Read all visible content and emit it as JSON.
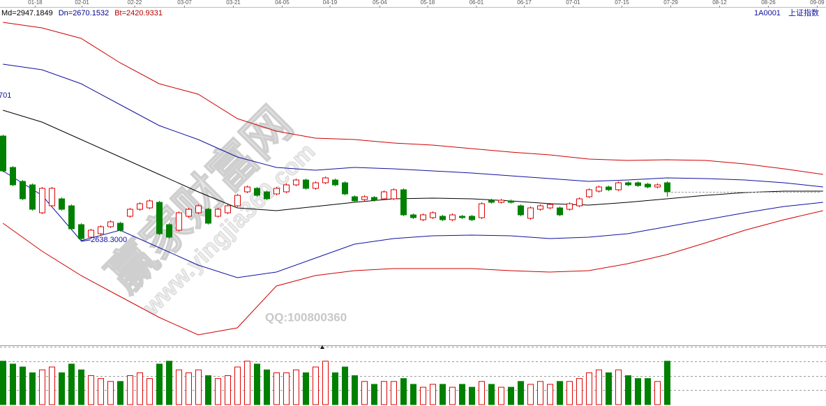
{
  "chart_data": {
    "type": "candlestick",
    "code": "1A0001",
    "title": "上证指数",
    "indicators": [
      {
        "label": "Md=2947.1849",
        "color": "#000000"
      },
      {
        "label": "Dn=2670.1532",
        "color": "#00008b"
      },
      {
        "label": "Bt=2420.9331",
        "color": "#b00000"
      }
    ],
    "low_label": "2638.3000",
    "left_label": "701",
    "watermarks": [
      "赢家财富网",
      "www.yingjia360.com",
      "QQ:100800360"
    ],
    "xlim": [
      -0.3,
      84.3
    ],
    "ylim": [
      2340,
      3310
    ],
    "xticks": [
      {
        "value": 3.3,
        "label": "01-18"
      },
      {
        "value": 8.1,
        "label": "02-01"
      },
      {
        "value": 13.5,
        "label": "02-22"
      },
      {
        "value": 18.6,
        "label": "03-07"
      },
      {
        "value": 23.6,
        "label": "03-21"
      },
      {
        "value": 28.6,
        "label": "04-05"
      },
      {
        "value": 33.5,
        "label": "04-19"
      },
      {
        "value": 38.6,
        "label": "05-04"
      },
      {
        "value": 43.5,
        "label": "05-18"
      },
      {
        "value": 48.5,
        "label": "06-01"
      },
      {
        "value": 53.4,
        "label": "06-17"
      },
      {
        "value": 58.4,
        "label": "07-01"
      },
      {
        "value": 63.4,
        "label": "07-15"
      },
      {
        "value": 68.4,
        "label": "07-29"
      },
      {
        "value": 73.4,
        "label": "08-12"
      },
      {
        "value": 78.4,
        "label": "08-26"
      },
      {
        "value": 83.4,
        "label": "09-09"
      }
    ],
    "up_color": "#e00000",
    "down_color": "#008000",
    "candles": {
      "open": [
        2940,
        2850,
        2810,
        2800,
        2720,
        2740,
        2760,
        2740,
        2686,
        2650,
        2660,
        2680,
        2690,
        2710,
        2730,
        2734,
        2750,
        2686,
        2670,
        2710,
        2720,
        2730,
        2710,
        2720,
        2740,
        2780,
        2790,
        2780,
        2774,
        2780,
        2800,
        2814,
        2790,
        2806,
        2814,
        2806,
        2766,
        2758,
        2764,
        2760,
        2760,
        2786,
        2714,
        2700,
        2706,
        2710,
        2700,
        2710,
        2710,
        2706,
        2756,
        2750,
        2754,
        2740,
        2704,
        2730,
        2734,
        2734,
        2730,
        2740,
        2766,
        2782,
        2794,
        2786,
        2806,
        2806,
        2802,
        2794,
        2806
      ],
      "close": [
        2840,
        2800,
        2760,
        2730,
        2790,
        2790,
        2730,
        2674,
        2646,
        2670,
        2680,
        2694,
        2670,
        2730,
        2746,
        2754,
        2660,
        2650,
        2720,
        2730,
        2740,
        2690,
        2730,
        2740,
        2770,
        2794,
        2770,
        2760,
        2790,
        2800,
        2814,
        2790,
        2806,
        2820,
        2800,
        2774,
        2754,
        2766,
        2756,
        2780,
        2786,
        2714,
        2706,
        2714,
        2720,
        2700,
        2714,
        2706,
        2700,
        2746,
        2750,
        2756,
        2750,
        2714,
        2734,
        2740,
        2744,
        2714,
        2746,
        2760,
        2786,
        2794,
        2786,
        2806,
        2800,
        2798,
        2794,
        2800,
        2780
      ],
      "high": [
        2944,
        2854,
        2814,
        2804,
        2794,
        2794,
        2764,
        2744,
        2690,
        2674,
        2684,
        2698,
        2694,
        2734,
        2750,
        2758,
        2754,
        2690,
        2724,
        2734,
        2744,
        2734,
        2734,
        2744,
        2774,
        2798,
        2794,
        2784,
        2794,
        2804,
        2818,
        2818,
        2810,
        2824,
        2818,
        2810,
        2770,
        2770,
        2768,
        2784,
        2790,
        2790,
        2718,
        2718,
        2724,
        2714,
        2718,
        2714,
        2714,
        2750,
        2760,
        2760,
        2758,
        2744,
        2738,
        2744,
        2748,
        2738,
        2750,
        2764,
        2790,
        2798,
        2798,
        2810,
        2810,
        2810,
        2806,
        2804,
        2810
      ],
      "low": [
        2836,
        2796,
        2756,
        2726,
        2716,
        2736,
        2726,
        2670,
        2638.3,
        2646,
        2656,
        2676,
        2666,
        2706,
        2726,
        2730,
        2656,
        2646,
        2666,
        2706,
        2716,
        2686,
        2706,
        2716,
        2736,
        2776,
        2766,
        2756,
        2770,
        2776,
        2796,
        2786,
        2786,
        2802,
        2796,
        2770,
        2750,
        2754,
        2752,
        2756,
        2756,
        2710,
        2702,
        2696,
        2702,
        2696,
        2696,
        2702,
        2696,
        2702,
        2746,
        2746,
        2746,
        2710,
        2700,
        2726,
        2730,
        2710,
        2726,
        2736,
        2762,
        2778,
        2782,
        2782,
        2796,
        2794,
        2790,
        2790,
        2766
      ]
    },
    "band_x": [
      0,
      4,
      8,
      12,
      16,
      20,
      24,
      28,
      32,
      36,
      40,
      44,
      48,
      52,
      56,
      60,
      64,
      68,
      72,
      76,
      80,
      84
    ],
    "bands": [
      {
        "color": "#d00000",
        "values": [
          3266,
          3250,
          3220,
          3150,
          3090,
          3060,
          2990,
          2954,
          2934,
          2930,
          2920,
          2914,
          2904,
          2894,
          2886,
          2874,
          2870,
          2872,
          2870,
          2860,
          2846,
          2830
        ]
      },
      {
        "color": "#1010a0",
        "values": [
          3146,
          3130,
          3090,
          3030,
          2970,
          2930,
          2880,
          2850,
          2842,
          2850,
          2846,
          2840,
          2834,
          2826,
          2818,
          2810,
          2814,
          2820,
          2818,
          2814,
          2806,
          2794
        ]
      },
      {
        "color": "#000000",
        "values": [
          3014,
          2980,
          2930,
          2880,
          2830,
          2780,
          2734,
          2726,
          2738,
          2750,
          2760,
          2762,
          2760,
          2754,
          2746,
          2742,
          2750,
          2760,
          2770,
          2778,
          2782,
          2782
        ]
      },
      {
        "color": "#1010a0",
        "values": [
          2840,
          2770,
          2640,
          2670,
          2620,
          2570,
          2534,
          2550,
          2590,
          2630,
          2646,
          2654,
          2656,
          2654,
          2646,
          2650,
          2660,
          2680,
          2700,
          2720,
          2738,
          2750
        ]
      },
      {
        "color": "#d00000",
        "values": [
          2690,
          2610,
          2540,
          2480,
          2420,
          2370,
          2390,
          2510,
          2540,
          2554,
          2560,
          2560,
          2560,
          2554,
          2550,
          2554,
          2574,
          2600,
          2634,
          2670,
          2700,
          2726
        ]
      }
    ],
    "volume": {
      "ylim": [
        0,
        100
      ],
      "yticks": [
        25,
        50,
        75,
        100
      ],
      "values": [
        75,
        70,
        65,
        55,
        60,
        65,
        55,
        70,
        60,
        50,
        45,
        40,
        40,
        50,
        55,
        45,
        70,
        75,
        60,
        55,
        60,
        50,
        45,
        50,
        65,
        75,
        70,
        60,
        55,
        55,
        60,
        55,
        65,
        75,
        55,
        65,
        50,
        40,
        35,
        40,
        40,
        45,
        35,
        30,
        35,
        35,
        30,
        35,
        30,
        40,
        35,
        30,
        30,
        40,
        35,
        40,
        35,
        40,
        40,
        45,
        55,
        60,
        55,
        60,
        50,
        45,
        45,
        40,
        75
      ]
    }
  }
}
